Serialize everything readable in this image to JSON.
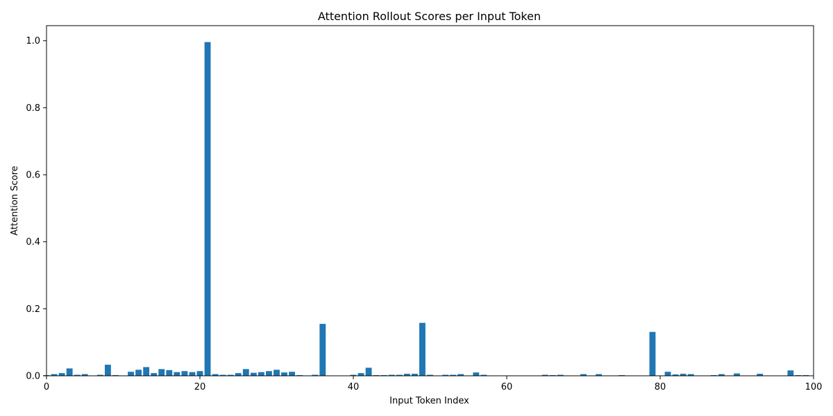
{
  "chart_data": {
    "type": "bar",
    "title": "Attention Rollout Scores per Input Token",
    "xlabel": "Input Token Index",
    "ylabel": "Attention Score",
    "xlim": [
      0,
      100
    ],
    "ylim": [
      0,
      1.045
    ],
    "xticks": [
      "0",
      "20",
      "40",
      "60",
      "80",
      "100"
    ],
    "yticks": [
      "0.0",
      "0.2",
      "0.4",
      "0.6",
      "0.8",
      "1.0"
    ],
    "grid": false,
    "bar_color": "#1f77b4",
    "x": [
      0,
      1,
      2,
      3,
      4,
      5,
      6,
      7,
      8,
      9,
      10,
      11,
      12,
      13,
      14,
      15,
      16,
      17,
      18,
      19,
      20,
      21,
      22,
      23,
      24,
      25,
      26,
      27,
      28,
      29,
      30,
      31,
      32,
      33,
      34,
      35,
      36,
      37,
      38,
      39,
      40,
      41,
      42,
      43,
      44,
      45,
      46,
      47,
      48,
      49,
      50,
      51,
      52,
      53,
      54,
      55,
      56,
      57,
      58,
      59,
      60,
      61,
      62,
      63,
      64,
      65,
      66,
      67,
      68,
      69,
      70,
      71,
      72,
      73,
      74,
      75,
      76,
      77,
      78,
      79,
      80,
      81,
      82,
      83,
      84,
      85,
      86,
      87,
      88,
      89,
      90,
      91,
      92,
      93,
      94,
      95,
      96,
      97,
      98,
      99
    ],
    "values": [
      0.002,
      0.005,
      0.008,
      0.022,
      0.003,
      0.005,
      0.001,
      0.003,
      0.033,
      0.002,
      0.001,
      0.012,
      0.018,
      0.026,
      0.008,
      0.02,
      0.017,
      0.011,
      0.014,
      0.011,
      0.014,
      0.996,
      0.005,
      0.003,
      0.003,
      0.008,
      0.02,
      0.009,
      0.011,
      0.014,
      0.018,
      0.01,
      0.012,
      0.002,
      0.001,
      0.003,
      0.155,
      0.001,
      0.001,
      0.001,
      0.003,
      0.008,
      0.024,
      0.002,
      0.002,
      0.003,
      0.003,
      0.006,
      0.006,
      0.158,
      0.003,
      0.001,
      0.003,
      0.003,
      0.005,
      0.001,
      0.01,
      0.003,
      0.001,
      0.001,
      0.001,
      0.001,
      0.0,
      0.001,
      0.0,
      0.003,
      0.002,
      0.003,
      0.001,
      0.001,
      0.005,
      0.0,
      0.005,
      0.0,
      0.001,
      0.002,
      0.001,
      0.001,
      0.001,
      0.131,
      0.0,
      0.012,
      0.004,
      0.006,
      0.005,
      0.001,
      0.001,
      0.002,
      0.005,
      0.0,
      0.007,
      0.001,
      0.0,
      0.006,
      0.0,
      0.0,
      0.001,
      0.016,
      0.002,
      0.002
    ]
  }
}
